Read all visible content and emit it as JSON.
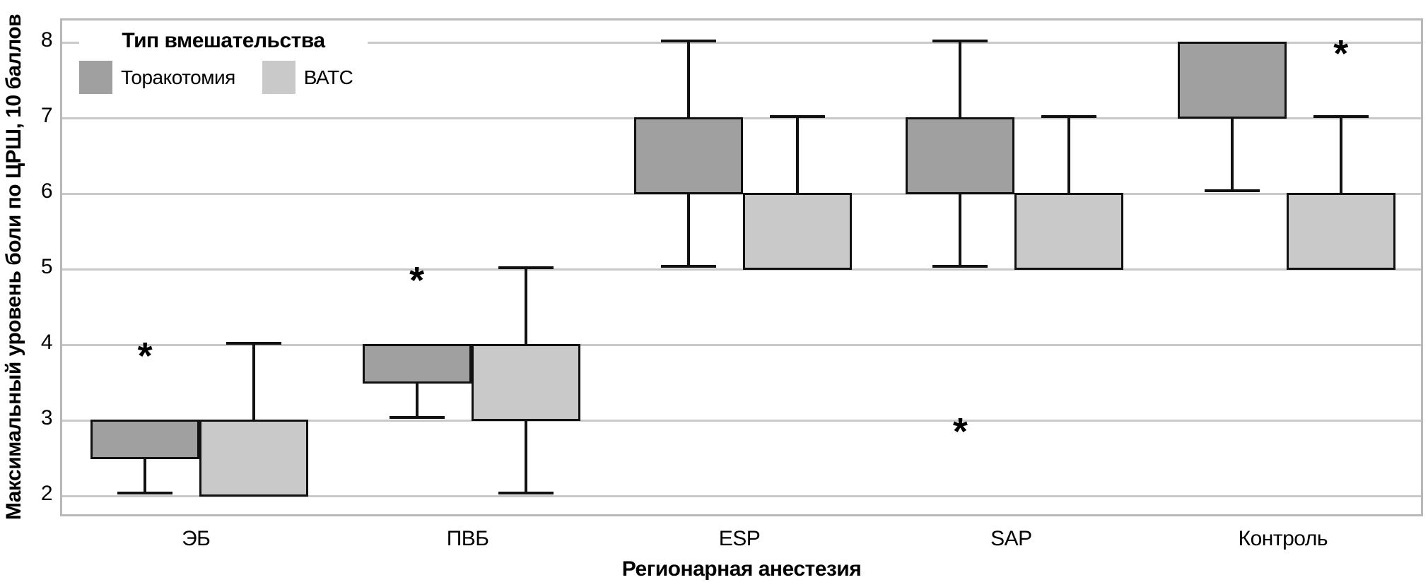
{
  "colors": {
    "background": "#ffffff",
    "thoracotomy_fill": "#a0a0a0",
    "vats_fill": "#c9c9c9",
    "box_border": "#111111",
    "whisker": "#111111",
    "gridline": "#c9c9c9",
    "plot_border": "#b8b8b8",
    "text": "#000000"
  },
  "chart_data": {
    "type": "boxplot",
    "title": "",
    "xlabel": "Регионарная анестезия",
    "ylabel": "Максимальный уровень боли по ЦРШ, 10 баллов",
    "categories": [
      "ЭБ",
      "ПВБ",
      "ESP",
      "SAP",
      "Контроль"
    ],
    "yticks": [
      8,
      7,
      6,
      5,
      4,
      3,
      2
    ],
    "ylim": [
      1.7,
      8.3
    ],
    "grid": "horizontal",
    "outlier_marker": "*",
    "legend": {
      "title": "Тип вмешательства",
      "position": "top-left",
      "entries": [
        {
          "label": "Торакотомия",
          "color": "#a0a0a0"
        },
        {
          "label": "ВАТС",
          "color": "#c9c9c9"
        }
      ]
    },
    "series": [
      {
        "name": "Торакотомия",
        "color": "#a0a0a0",
        "boxes": [
          {
            "category": "ЭБ",
            "q1": 2.5,
            "q3": 3,
            "whisker_low": 2,
            "whisker_high": 3,
            "outliers": [
              4
            ]
          },
          {
            "category": "ПВБ",
            "q1": 3.5,
            "q3": 4,
            "whisker_low": 3,
            "whisker_high": 4,
            "outliers": [
              5
            ]
          },
          {
            "category": "ESP",
            "q1": 6,
            "q3": 7,
            "whisker_low": 5,
            "whisker_high": 8,
            "outliers": []
          },
          {
            "category": "SAP",
            "q1": 6,
            "q3": 7,
            "whisker_low": 5,
            "whisker_high": 8,
            "outliers": [
              3
            ]
          },
          {
            "category": "Контроль",
            "q1": 7,
            "q3": 8,
            "whisker_low": 6,
            "whisker_high": 8,
            "outliers": []
          }
        ]
      },
      {
        "name": "ВАТС",
        "color": "#c9c9c9",
        "boxes": [
          {
            "category": "ЭБ",
            "q1": 2,
            "q3": 3,
            "whisker_low": 2,
            "whisker_high": 4,
            "outliers": []
          },
          {
            "category": "ПВБ",
            "q1": 3,
            "q3": 4,
            "whisker_low": 2,
            "whisker_high": 5,
            "outliers": []
          },
          {
            "category": "ESP",
            "q1": 5,
            "q3": 6,
            "whisker_low": 5,
            "whisker_high": 7,
            "outliers": []
          },
          {
            "category": "SAP",
            "q1": 5,
            "q3": 6,
            "whisker_low": 5,
            "whisker_high": 7,
            "outliers": []
          },
          {
            "category": "Контроль",
            "q1": 5,
            "q3": 6,
            "whisker_low": 5,
            "whisker_high": 7,
            "outliers": [
              8
            ]
          }
        ]
      }
    ]
  }
}
